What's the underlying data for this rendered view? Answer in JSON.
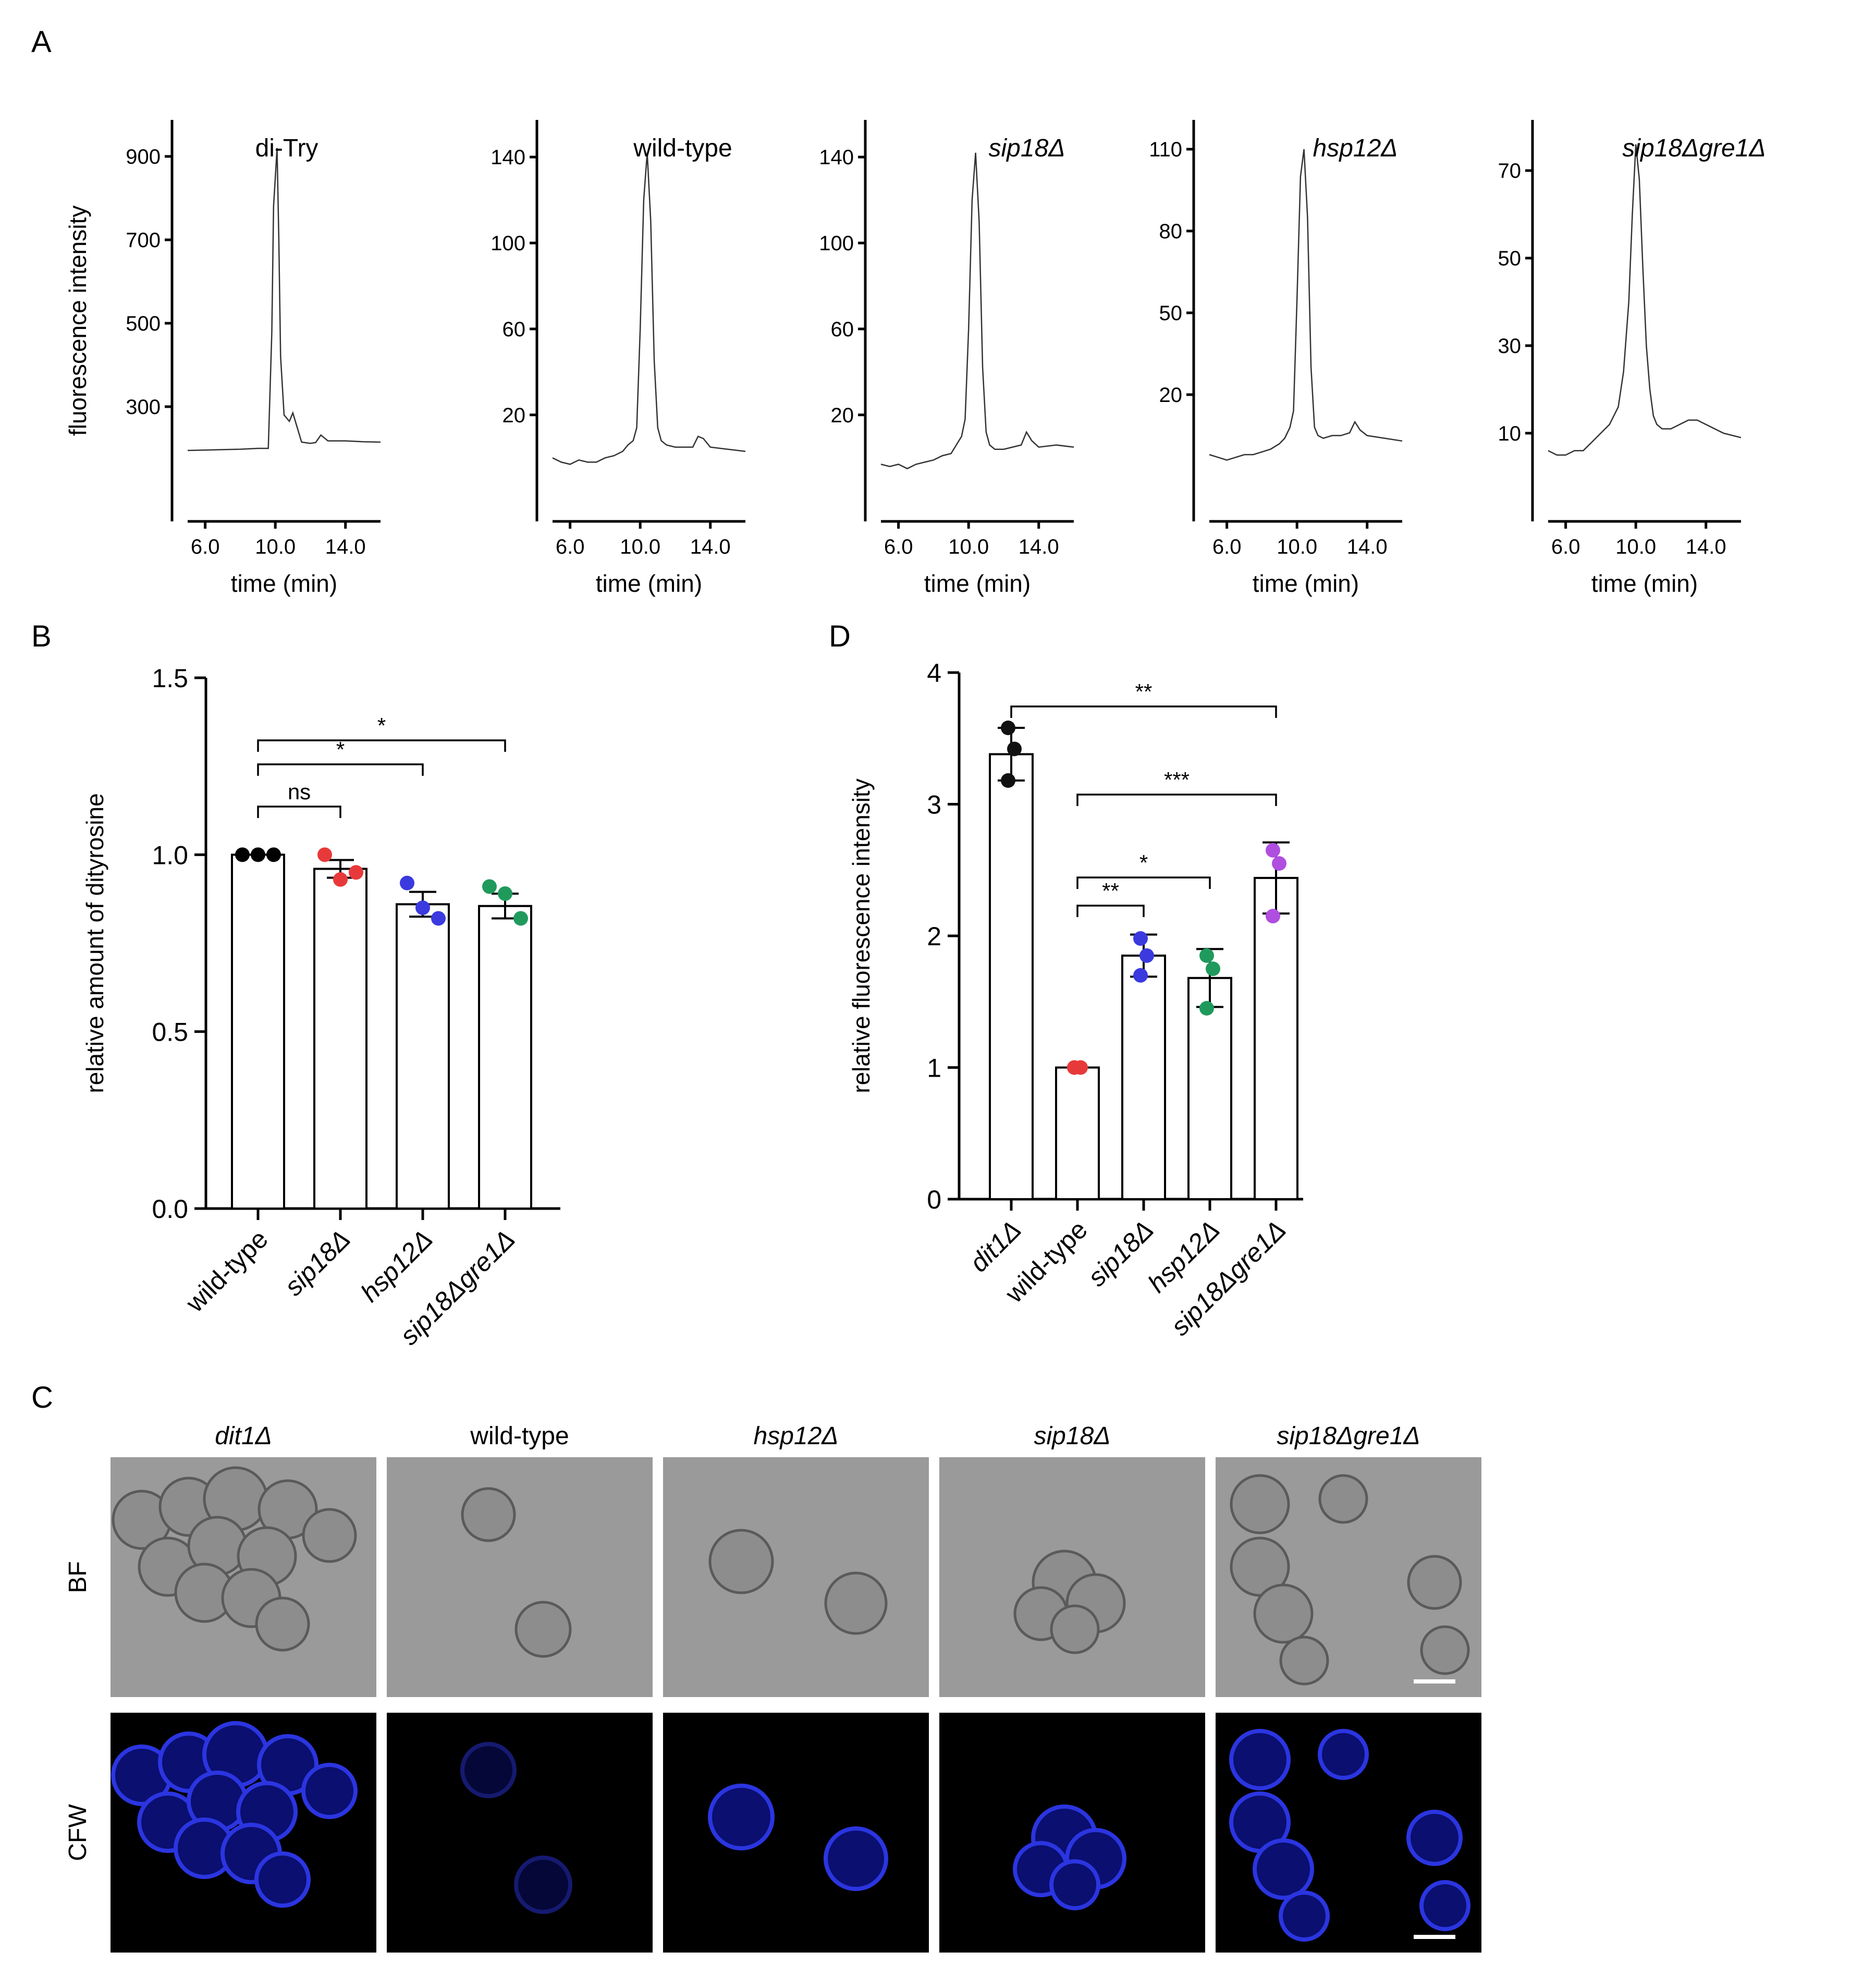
{
  "panels": {
    "A": "A",
    "B": "B",
    "C": "C",
    "D": "D"
  },
  "colors": {
    "wild-type_B": "#000000",
    "sip18_B": "#e8393a",
    "hsp12_B": "#3a3adf",
    "sip18gre1_B": "#1f9a5c",
    "dit1_D": "#111111",
    "wild-type_D": "#e8393a",
    "sip18_D": "#3a3adf",
    "hsp12_D": "#1f9a5c",
    "sip18gre1_D": "#b04ee0"
  },
  "chart_data": [
    {
      "id": "A",
      "type": "line",
      "xlabel": "time (min)",
      "ylabel": "fluorescence intensity",
      "x_ticks": [
        "6.0",
        "10.0",
        "14.0"
      ],
      "subplots": [
        {
          "label": "di-Try",
          "italic": false,
          "y_ticks": [
            "300",
            "500",
            "700",
            "900"
          ],
          "ylim": [
            100,
            950
          ],
          "x": [
            5.0,
            6.0,
            7.0,
            8.0,
            9.0,
            9.6,
            9.8,
            9.9,
            10.0,
            10.1,
            10.2,
            10.3,
            10.5,
            10.8,
            11.0,
            11.5,
            12.0,
            12.3,
            12.6,
            13.0,
            14.0,
            15.0,
            16.0
          ],
          "y": [
            195,
            196,
            197,
            198,
            200,
            200,
            480,
            780,
            850,
            920,
            700,
            420,
            280,
            265,
            285,
            215,
            212,
            214,
            232,
            218,
            218,
            216,
            215
          ]
        },
        {
          "label": "wild-type",
          "italic": false,
          "y_ticks": [
            "20",
            "60",
            "100",
            "140"
          ],
          "ylim": [
            -15,
            150
          ],
          "x": [
            5.0,
            5.5,
            6.0,
            6.5,
            7.0,
            7.5,
            8.0,
            8.5,
            9.0,
            9.3,
            9.6,
            9.8,
            10.0,
            10.2,
            10.4,
            10.6,
            10.8,
            11.0,
            11.2,
            11.5,
            12.0,
            12.5,
            13.0,
            13.3,
            13.6,
            14.0,
            15.0,
            16.0
          ],
          "y": [
            0,
            -2,
            -3,
            -1,
            -2,
            -2,
            0,
            1,
            3,
            6,
            8,
            14,
            60,
            120,
            142,
            110,
            45,
            14,
            8,
            6,
            5,
            5,
            5,
            10,
            9,
            5,
            4,
            3
          ]
        },
        {
          "label": "sip18Δ",
          "italic": true,
          "y_ticks": [
            "20",
            "60",
            "100",
            "140"
          ],
          "ylim": [
            -15,
            150
          ],
          "x": [
            5.0,
            5.5,
            6.0,
            6.5,
            7.0,
            7.5,
            8.0,
            8.5,
            9.0,
            9.3,
            9.6,
            9.8,
            10.0,
            10.2,
            10.4,
            10.6,
            10.8,
            11.0,
            11.2,
            11.5,
            12.0,
            12.5,
            13.0,
            13.3,
            13.6,
            14.0,
            15.0,
            16.0
          ],
          "y": [
            -3,
            -4,
            -3,
            -5,
            -3,
            -2,
            -1,
            1,
            2,
            6,
            10,
            18,
            60,
            120,
            142,
            110,
            42,
            12,
            6,
            4,
            4,
            5,
            6,
            12,
            8,
            5,
            6,
            5
          ]
        },
        {
          "label": "hsp12Δ",
          "italic": true,
          "y_ticks": [
            "20",
            "50",
            "80",
            "110"
          ],
          "ylim": [
            -15,
            115
          ],
          "x": [
            5.0,
            5.5,
            6.0,
            6.5,
            7.0,
            7.5,
            8.0,
            8.5,
            9.0,
            9.3,
            9.6,
            9.8,
            10.0,
            10.2,
            10.4,
            10.6,
            10.8,
            11.0,
            11.2,
            11.5,
            12.0,
            12.5,
            13.0,
            13.3,
            13.6,
            14.0,
            15.0,
            16.0
          ],
          "y": [
            -2,
            -3,
            -4,
            -3,
            -2,
            -2,
            -1,
            0,
            2,
            4,
            8,
            14,
            55,
            100,
            110,
            85,
            30,
            8,
            5,
            4,
            5,
            5,
            6,
            10,
            7,
            5,
            4,
            3
          ]
        },
        {
          "label": "sip18Δgre1Δ",
          "italic": true,
          "y_ticks": [
            "10",
            "30",
            "50",
            "70"
          ],
          "ylim": [
            -3,
            78
          ],
          "x": [
            5.0,
            5.5,
            6.0,
            6.5,
            7.0,
            7.5,
            8.0,
            8.5,
            9.0,
            9.3,
            9.6,
            9.8,
            10.0,
            10.2,
            10.4,
            10.6,
            10.8,
            11.0,
            11.2,
            11.5,
            12.0,
            12.5,
            13.0,
            13.5,
            14.0,
            15.0,
            16.0
          ],
          "y": [
            6,
            5,
            5,
            6,
            6,
            8,
            10,
            12,
            16,
            24,
            40,
            60,
            76,
            68,
            48,
            30,
            20,
            14,
            12,
            11,
            11,
            12,
            13,
            13,
            12,
            10,
            9
          ]
        }
      ]
    },
    {
      "id": "B",
      "type": "bar",
      "ylabel": "relative amount of dityrosine",
      "categories": [
        "wild-type",
        "sip18Δ",
        "hsp12Δ",
        "sip18Δgre1Δ"
      ],
      "italic_categories": [
        false,
        true,
        true,
        true
      ],
      "values": [
        1.0,
        0.96,
        0.86,
        0.855
      ],
      "errors": [
        0.0,
        0.025,
        0.035,
        0.035
      ],
      "points": [
        [
          1.0,
          1.0,
          1.0
        ],
        [
          1.0,
          0.93,
          0.95
        ],
        [
          0.92,
          0.85,
          0.82
        ],
        [
          0.91,
          0.89,
          0.82
        ]
      ],
      "ylim": [
        0.0,
        1.5
      ],
      "y_ticks": [
        "0.0",
        "0.5",
        "1.0",
        "1.5"
      ],
      "significance": [
        {
          "from": 0,
          "to": 1,
          "label": "ns"
        },
        {
          "from": 0,
          "to": 2,
          "label": "*"
        },
        {
          "from": 0,
          "to": 3,
          "label": "*"
        }
      ]
    },
    {
      "id": "D",
      "type": "bar",
      "ylabel": "relative fluorescence intensity",
      "categories": [
        "dit1Δ",
        "wild-type",
        "sip18Δ",
        "hsp12Δ",
        "sip18Δgre1Δ"
      ],
      "italic_categories": [
        true,
        false,
        true,
        true,
        true
      ],
      "values": [
        3.38,
        1.0,
        1.85,
        1.68,
        2.44
      ],
      "errors": [
        0.2,
        0.0,
        0.16,
        0.22,
        0.27
      ],
      "points": [
        [
          3.58,
          3.42,
          3.18
        ],
        [
          1.0,
          1.0,
          1.0
        ],
        [
          1.98,
          1.85,
          1.7
        ],
        [
          1.85,
          1.75,
          1.45
        ],
        [
          2.65,
          2.55,
          2.15
        ]
      ],
      "ylim": [
        0,
        4
      ],
      "y_ticks": [
        "0",
        "1",
        "2",
        "3",
        "4"
      ],
      "significance": [
        {
          "from": 1,
          "to": 2,
          "label": "**"
        },
        {
          "from": 1,
          "to": 3,
          "label": "*"
        },
        {
          "from": 1,
          "to": 4,
          "label": "***"
        },
        {
          "from": 0,
          "to": 4,
          "label": "**"
        }
      ]
    }
  ],
  "micrographs": {
    "columns": [
      {
        "label": "dit1Δ",
        "italic": true
      },
      {
        "label": "wild-type",
        "italic": false
      },
      {
        "label": "hsp12Δ",
        "italic": true
      },
      {
        "label": "sip18Δ",
        "italic": true
      },
      {
        "label": "sip18Δgre1Δ",
        "italic": true
      }
    ],
    "rows": [
      "BF",
      "CFW"
    ],
    "bf_color": "#9a9a9a",
    "cfw_color": "#000000",
    "cfw_cell_color": "#2b35e0"
  }
}
